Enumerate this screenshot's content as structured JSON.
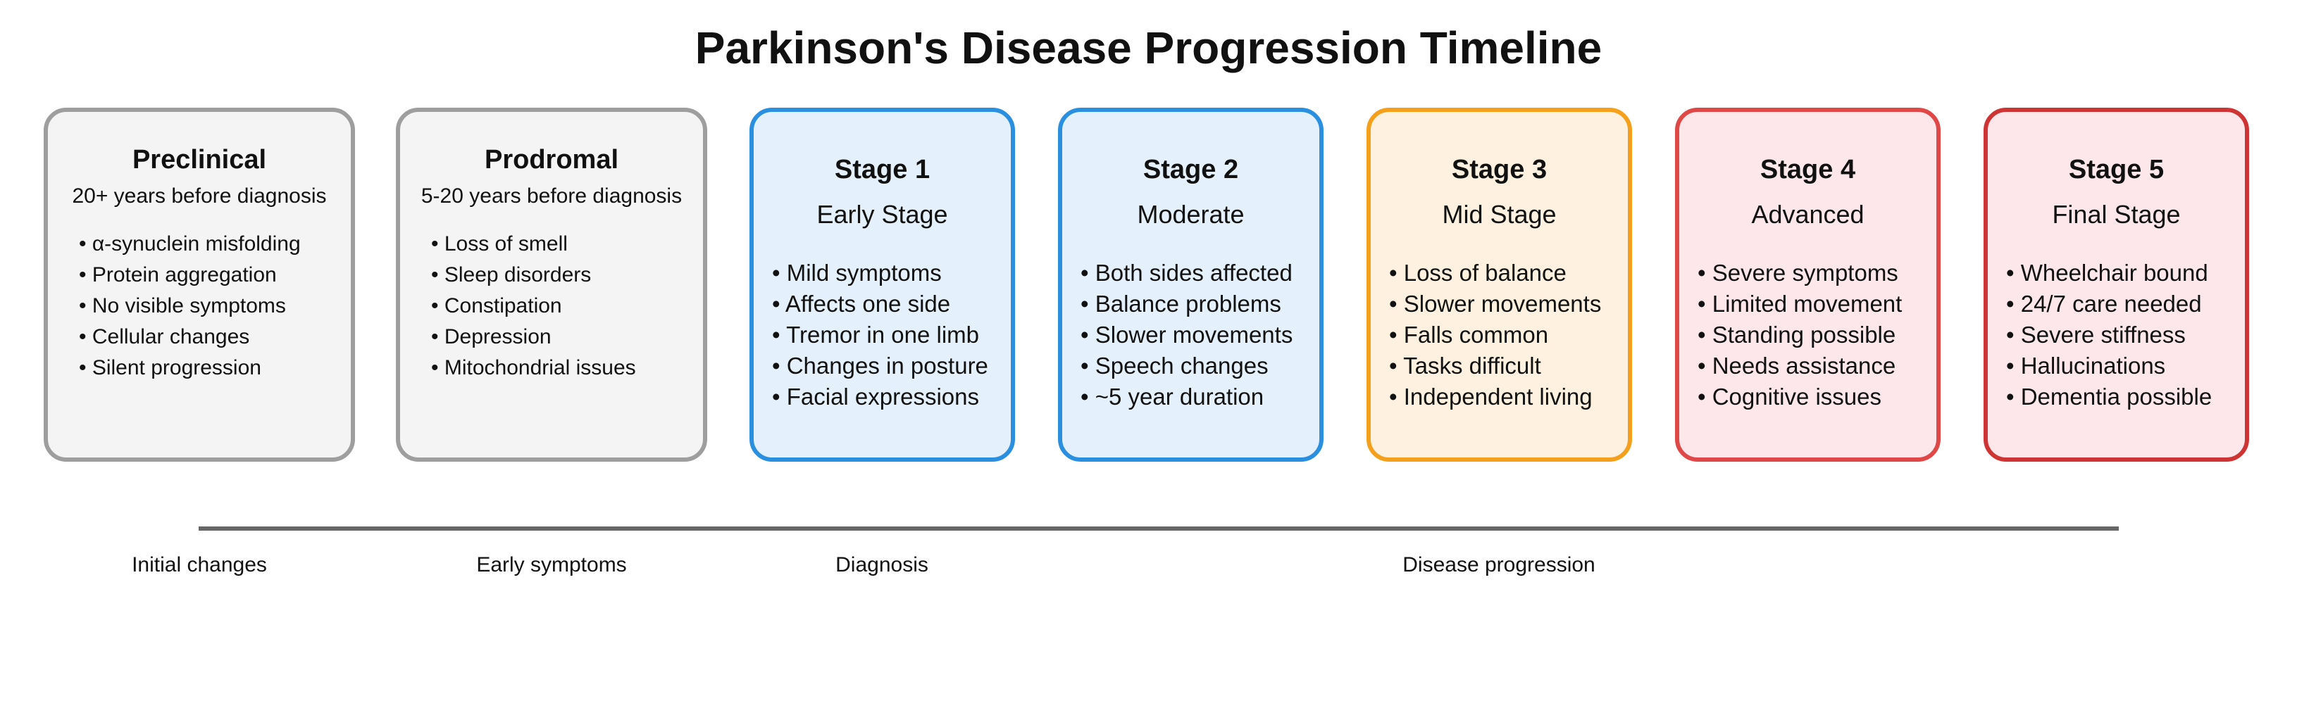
{
  "title": "Parkinson's Disease Progression Timeline",
  "stages": [
    {
      "title": "Preclinical",
      "subtitle": "20+ years before diagnosis",
      "items": [
        "• α-synuclein misfolding",
        "• Protein aggregation",
        "• No visible symptoms",
        "• Cellular changes",
        "• Silent progression"
      ],
      "border_color": "#9e9e9e",
      "fill_color": "#f4f4f4"
    },
    {
      "title": "Prodromal",
      "subtitle": "5-20 years before diagnosis",
      "items": [
        "• Loss of smell",
        "• Sleep disorders",
        "• Constipation",
        "• Depression",
        "• Mitochondrial issues"
      ],
      "border_color": "#9e9e9e",
      "fill_color": "#f4f4f4"
    },
    {
      "title": "Stage 1",
      "subtitle": "Early Stage",
      "items": [
        "• Mild symptoms",
        "• Affects one side",
        "• Tremor in one limb",
        "• Changes in posture",
        "• Facial expressions"
      ],
      "border_color": "#2b8fe0",
      "fill_color": "#e4f1fd"
    },
    {
      "title": "Stage 2",
      "subtitle": "Moderate",
      "items": [
        "• Both sides affected",
        "• Balance problems",
        "• Slower movements",
        "• Speech changes",
        "• ~5 year duration"
      ],
      "border_color": "#2b8fe0",
      "fill_color": "#e4f1fd"
    },
    {
      "title": "Stage 3",
      "subtitle": "Mid Stage",
      "items": [
        "• Loss of balance",
        "• Slower movements",
        "• Falls common",
        "• Tasks difficult",
        "• Independent living"
      ],
      "border_color": "#f5a01c",
      "fill_color": "#fef1df"
    },
    {
      "title": "Stage 4",
      "subtitle": "Advanced",
      "items": [
        "• Severe symptoms",
        "• Limited movement",
        "• Standing possible",
        "• Needs assistance",
        "• Cognitive issues"
      ],
      "border_color": "#e04848",
      "fill_color": "#fde7ea"
    },
    {
      "title": "Stage 5",
      "subtitle": "Final Stage",
      "items": [
        "• Wheelchair bound",
        "• 24/7 care needed",
        "• Severe stiffness",
        "• Hallucinations",
        "• Dementia possible"
      ],
      "border_color": "#cf3434",
      "fill_color": "#fde7ea"
    }
  ],
  "timeline": {
    "line_color": "#666666",
    "labels": [
      "Initial changes",
      "Early symptoms",
      "Diagnosis",
      "Disease progression"
    ]
  }
}
